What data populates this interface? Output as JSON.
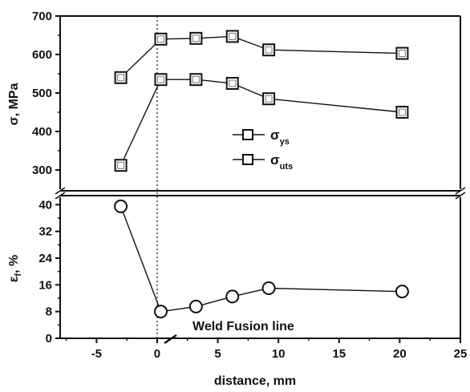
{
  "chart_data": {
    "type": "line",
    "xlabel": "distance, mm",
    "xlim": [
      -8,
      25
    ],
    "xticks": [
      -5,
      0,
      5,
      10,
      15,
      20,
      25
    ],
    "grid": false,
    "vline_x": 0,
    "annotation": "Weld Fusion line",
    "panels": [
      {
        "name": "stress",
        "ylabel_main": "σ, MPa",
        "ylim": [
          250,
          700
        ],
        "yticks": [
          300,
          400,
          500,
          600,
          700
        ],
        "marker": "square",
        "series": [
          {
            "name_main": "σ",
            "name_sub": "ys",
            "x": [
              -3,
              0.3,
              3.2,
              6.2,
              9.2,
              20.2
            ],
            "y": [
              312,
              535,
              535,
              525,
              485,
              450
            ]
          },
          {
            "name_main": "σ",
            "name_sub": "uts",
            "x": [
              -3,
              0.3,
              3.2,
              6.2,
              9.2,
              20.2
            ],
            "y": [
              540,
              640,
              642,
              647,
              612,
              603
            ]
          }
        ]
      },
      {
        "name": "elongation",
        "ylabel_main": "ε",
        "ylabel_sub": "f",
        "ylabel_rest": ", %",
        "ylim": [
          0,
          42
        ],
        "yticks": [
          0,
          8,
          16,
          24,
          32,
          40
        ],
        "marker": "circle",
        "series": [
          {
            "x": [
              -3,
              0.3,
              3.2,
              6.2,
              9.2,
              20.2
            ],
            "y": [
              39.5,
              8,
              9.5,
              12.5,
              15,
              14
            ]
          }
        ]
      }
    ]
  }
}
